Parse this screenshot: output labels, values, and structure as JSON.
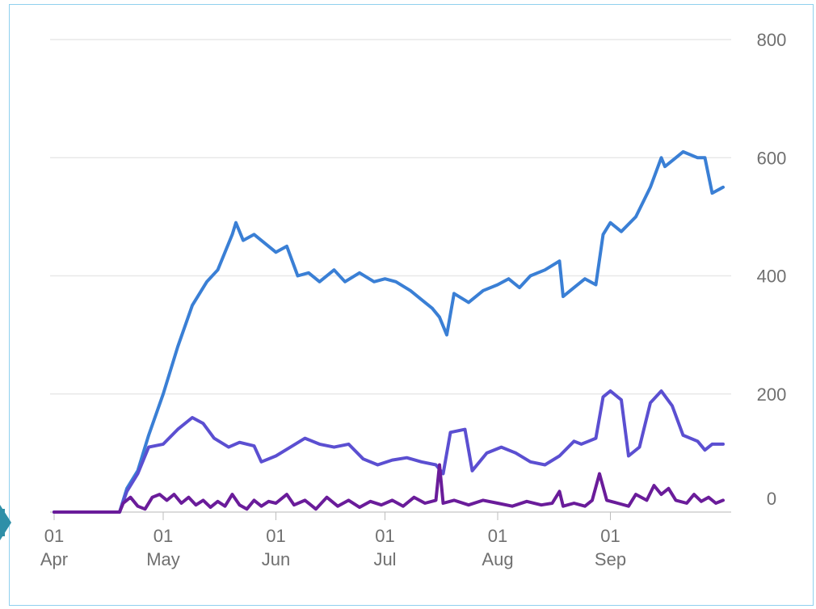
{
  "chart_data": {
    "type": "line",
    "title": "",
    "xlabel": "",
    "ylabel": "",
    "ylim": [
      0,
      800
    ],
    "y_ticks": [
      "0",
      "200",
      "400",
      "600",
      "800"
    ],
    "x_ticks": [
      {
        "day": "01",
        "month": "Apr",
        "date": "2020-04-01"
      },
      {
        "day": "01",
        "month": "May",
        "date": "2020-05-01"
      },
      {
        "day": "01",
        "month": "Jun",
        "date": "2020-06-01"
      },
      {
        "day": "01",
        "month": "Jul",
        "date": "2020-07-01"
      },
      {
        "day": "01",
        "month": "Aug",
        "date": "2020-08-01"
      },
      {
        "day": "01",
        "month": "Sep",
        "date": "2020-09-01"
      }
    ],
    "y_axis_side": "right",
    "grid": true,
    "legend": "none",
    "series": [
      {
        "color": "#3a7fd5",
        "points": [
          [
            "2020-04-01",
            0
          ],
          [
            "2020-04-19",
            0
          ],
          [
            "2020-04-21",
            40
          ],
          [
            "2020-04-24",
            70
          ],
          [
            "2020-04-27",
            130
          ],
          [
            "2020-05-01",
            200
          ],
          [
            "2020-05-05",
            280
          ],
          [
            "2020-05-09",
            350
          ],
          [
            "2020-05-13",
            390
          ],
          [
            "2020-05-16",
            410
          ],
          [
            "2020-05-20",
            470
          ],
          [
            "2020-05-21",
            490
          ],
          [
            "2020-05-23",
            460
          ],
          [
            "2020-05-26",
            470
          ],
          [
            "2020-05-29",
            455
          ],
          [
            "2020-06-01",
            440
          ],
          [
            "2020-06-04",
            450
          ],
          [
            "2020-06-07",
            400
          ],
          [
            "2020-06-10",
            405
          ],
          [
            "2020-06-13",
            390
          ],
          [
            "2020-06-17",
            410
          ],
          [
            "2020-06-20",
            390
          ],
          [
            "2020-06-24",
            405
          ],
          [
            "2020-06-28",
            390
          ],
          [
            "2020-07-01",
            395
          ],
          [
            "2020-07-04",
            390
          ],
          [
            "2020-07-08",
            375
          ],
          [
            "2020-07-11",
            360
          ],
          [
            "2020-07-14",
            345
          ],
          [
            "2020-07-16",
            330
          ],
          [
            "2020-07-18",
            300
          ],
          [
            "2020-07-20",
            370
          ],
          [
            "2020-07-24",
            355
          ],
          [
            "2020-07-28",
            375
          ],
          [
            "2020-08-01",
            385
          ],
          [
            "2020-08-04",
            395
          ],
          [
            "2020-08-07",
            380
          ],
          [
            "2020-08-10",
            400
          ],
          [
            "2020-08-14",
            410
          ],
          [
            "2020-08-18",
            425
          ],
          [
            "2020-08-19",
            365
          ],
          [
            "2020-08-22",
            380
          ],
          [
            "2020-08-25",
            395
          ],
          [
            "2020-08-28",
            385
          ],
          [
            "2020-08-30",
            470
          ],
          [
            "2020-09-01",
            490
          ],
          [
            "2020-09-04",
            475
          ],
          [
            "2020-09-08",
            500
          ],
          [
            "2020-09-12",
            550
          ],
          [
            "2020-09-15",
            600
          ],
          [
            "2020-09-16",
            585
          ],
          [
            "2020-09-19",
            600
          ],
          [
            "2020-09-21",
            610
          ],
          [
            "2020-09-25",
            600
          ],
          [
            "2020-09-27",
            600
          ],
          [
            "2020-09-29",
            540
          ],
          [
            "2020-10-02",
            550
          ]
        ]
      },
      {
        "color": "#5b4fd1",
        "points": [
          [
            "2020-04-01",
            0
          ],
          [
            "2020-04-19",
            0
          ],
          [
            "2020-04-21",
            35
          ],
          [
            "2020-04-24",
            65
          ],
          [
            "2020-04-27",
            110
          ],
          [
            "2020-05-01",
            115
          ],
          [
            "2020-05-05",
            140
          ],
          [
            "2020-05-09",
            160
          ],
          [
            "2020-05-12",
            150
          ],
          [
            "2020-05-15",
            125
          ],
          [
            "2020-05-19",
            110
          ],
          [
            "2020-05-22",
            118
          ],
          [
            "2020-05-26",
            112
          ],
          [
            "2020-05-28",
            85
          ],
          [
            "2020-06-01",
            95
          ],
          [
            "2020-06-05",
            110
          ],
          [
            "2020-06-09",
            125
          ],
          [
            "2020-06-13",
            115
          ],
          [
            "2020-06-17",
            110
          ],
          [
            "2020-06-21",
            115
          ],
          [
            "2020-06-25",
            90
          ],
          [
            "2020-06-29",
            80
          ],
          [
            "2020-07-03",
            88
          ],
          [
            "2020-07-07",
            92
          ],
          [
            "2020-07-11",
            85
          ],
          [
            "2020-07-15",
            80
          ],
          [
            "2020-07-17",
            65
          ],
          [
            "2020-07-19",
            135
          ],
          [
            "2020-07-23",
            140
          ],
          [
            "2020-07-25",
            70
          ],
          [
            "2020-07-29",
            100
          ],
          [
            "2020-08-02",
            110
          ],
          [
            "2020-08-06",
            100
          ],
          [
            "2020-08-10",
            85
          ],
          [
            "2020-08-14",
            80
          ],
          [
            "2020-08-18",
            95
          ],
          [
            "2020-08-22",
            120
          ],
          [
            "2020-08-24",
            115
          ],
          [
            "2020-08-26",
            120
          ],
          [
            "2020-08-28",
            125
          ],
          [
            "2020-08-30",
            195
          ],
          [
            "2020-09-01",
            205
          ],
          [
            "2020-09-04",
            190
          ],
          [
            "2020-09-06",
            95
          ],
          [
            "2020-09-09",
            110
          ],
          [
            "2020-09-12",
            185
          ],
          [
            "2020-09-15",
            205
          ],
          [
            "2020-09-18",
            180
          ],
          [
            "2020-09-21",
            130
          ],
          [
            "2020-09-25",
            120
          ],
          [
            "2020-09-27",
            105
          ],
          [
            "2020-09-29",
            115
          ],
          [
            "2020-10-02",
            115
          ]
        ]
      },
      {
        "color": "#6a1c9a",
        "points": [
          [
            "2020-04-01",
            0
          ],
          [
            "2020-04-19",
            0
          ],
          [
            "2020-04-20",
            15
          ],
          [
            "2020-04-22",
            25
          ],
          [
            "2020-04-24",
            10
          ],
          [
            "2020-04-26",
            5
          ],
          [
            "2020-04-28",
            25
          ],
          [
            "2020-04-30",
            30
          ],
          [
            "2020-05-02",
            20
          ],
          [
            "2020-05-04",
            30
          ],
          [
            "2020-05-06",
            15
          ],
          [
            "2020-05-08",
            25
          ],
          [
            "2020-05-10",
            12
          ],
          [
            "2020-05-12",
            20
          ],
          [
            "2020-05-14",
            8
          ],
          [
            "2020-05-16",
            18
          ],
          [
            "2020-05-18",
            10
          ],
          [
            "2020-05-20",
            30
          ],
          [
            "2020-05-22",
            12
          ],
          [
            "2020-05-24",
            5
          ],
          [
            "2020-05-26",
            20
          ],
          [
            "2020-05-28",
            10
          ],
          [
            "2020-05-30",
            18
          ],
          [
            "2020-06-01",
            15
          ],
          [
            "2020-06-04",
            30
          ],
          [
            "2020-06-06",
            12
          ],
          [
            "2020-06-09",
            20
          ],
          [
            "2020-06-12",
            5
          ],
          [
            "2020-06-15",
            25
          ],
          [
            "2020-06-18",
            10
          ],
          [
            "2020-06-21",
            20
          ],
          [
            "2020-06-24",
            8
          ],
          [
            "2020-06-27",
            18
          ],
          [
            "2020-06-30",
            12
          ],
          [
            "2020-07-03",
            20
          ],
          [
            "2020-07-06",
            10
          ],
          [
            "2020-07-09",
            25
          ],
          [
            "2020-07-12",
            15
          ],
          [
            "2020-07-15",
            20
          ],
          [
            "2020-07-16",
            80
          ],
          [
            "2020-07-17",
            15
          ],
          [
            "2020-07-20",
            20
          ],
          [
            "2020-07-24",
            12
          ],
          [
            "2020-07-28",
            20
          ],
          [
            "2020-08-01",
            15
          ],
          [
            "2020-08-05",
            10
          ],
          [
            "2020-08-09",
            18
          ],
          [
            "2020-08-13",
            12
          ],
          [
            "2020-08-16",
            15
          ],
          [
            "2020-08-18",
            35
          ],
          [
            "2020-08-19",
            10
          ],
          [
            "2020-08-22",
            15
          ],
          [
            "2020-08-25",
            10
          ],
          [
            "2020-08-27",
            20
          ],
          [
            "2020-08-29",
            65
          ],
          [
            "2020-08-31",
            20
          ],
          [
            "2020-09-03",
            15
          ],
          [
            "2020-09-06",
            10
          ],
          [
            "2020-09-08",
            30
          ],
          [
            "2020-09-11",
            20
          ],
          [
            "2020-09-13",
            45
          ],
          [
            "2020-09-15",
            30
          ],
          [
            "2020-09-17",
            40
          ],
          [
            "2020-09-19",
            20
          ],
          [
            "2020-09-22",
            15
          ],
          [
            "2020-09-24",
            30
          ],
          [
            "2020-09-26",
            18
          ],
          [
            "2020-09-28",
            25
          ],
          [
            "2020-09-30",
            15
          ],
          [
            "2020-10-02",
            20
          ]
        ]
      }
    ]
  }
}
